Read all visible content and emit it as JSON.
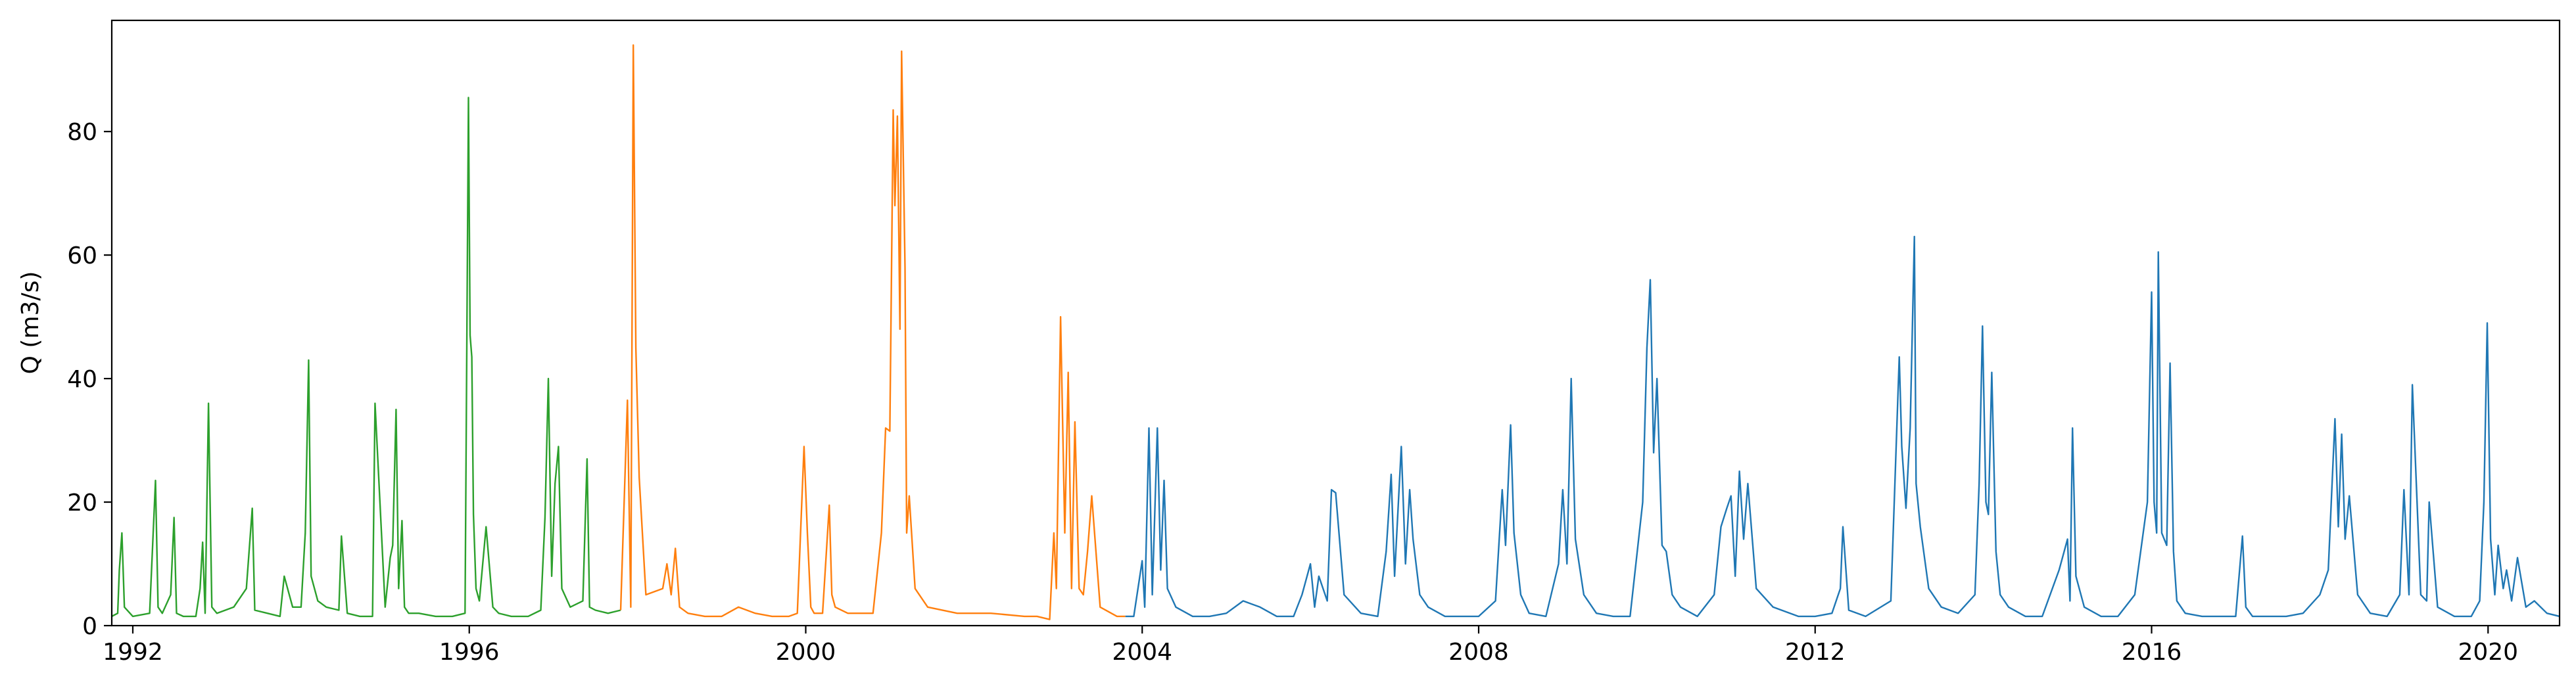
{
  "chart_data": {
    "type": "line",
    "ylabel": "Q (m3/s)",
    "xlabel": "",
    "title": "",
    "xlim": [
      1991.75,
      2020.85
    ],
    "ylim": [
      0,
      98
    ],
    "x_ticks": [
      1992,
      1996,
      2000,
      2004,
      2008,
      2012,
      2016,
      2020
    ],
    "x_tick_labels": [
      "1992",
      "1996",
      "2000",
      "2004",
      "2008",
      "2012",
      "2016",
      "2020"
    ],
    "y_ticks": [
      0,
      20,
      40,
      60,
      80
    ],
    "y_tick_labels": [
      "0",
      "20",
      "40",
      "60",
      "80"
    ],
    "grid": false,
    "series": [
      {
        "color": "#2ca02c",
        "x": [
          1991.75,
          1991.82,
          1991.84,
          1991.87,
          1991.9,
          1992.0,
          1992.2,
          1992.27,
          1992.3,
          1992.35,
          1992.45,
          1992.49,
          1992.52,
          1992.6,
          1992.75,
          1992.8,
          1992.83,
          1992.86,
          1992.9,
          1992.94,
          1993.0,
          1993.2,
          1993.35,
          1993.42,
          1993.45,
          1993.6,
          1993.75,
          1993.8,
          1993.9,
          1994.0,
          1994.05,
          1994.09,
          1994.12,
          1994.2,
          1994.3,
          1994.45,
          1994.48,
          1994.55,
          1994.7,
          1994.85,
          1994.88,
          1995.0,
          1995.06,
          1995.09,
          1995.13,
          1995.16,
          1995.2,
          1995.23,
          1995.28,
          1995.4,
          1995.6,
          1995.8,
          1995.95,
          1995.99,
          1996.01,
          1996.03,
          1996.05,
          1996.08,
          1996.12,
          1996.2,
          1996.28,
          1996.35,
          1996.5,
          1996.7,
          1996.85,
          1996.9,
          1996.94,
          1996.98,
          1997.02,
          1997.06,
          1997.1,
          1997.2,
          1997.35,
          1997.4,
          1997.43,
          1997.5,
          1997.65,
          1997.8
        ],
        "y": [
          1.5,
          2,
          9,
          15,
          3,
          1.5,
          2,
          23.5,
          3,
          2,
          5,
          17.5,
          2,
          1.5,
          1.5,
          6,
          13.5,
          2,
          36,
          3,
          2,
          3,
          6,
          19,
          2.5,
          2,
          1.5,
          8,
          3,
          3,
          15,
          43,
          8,
          4,
          3,
          2.5,
          14.5,
          2,
          1.5,
          1.5,
          36,
          3,
          11,
          13,
          35,
          6,
          17,
          3,
          2,
          2,
          1.5,
          1.5,
          2,
          85.5,
          47,
          43.5,
          18,
          6,
          4,
          16,
          3,
          2,
          1.5,
          1.5,
          2.5,
          17.5,
          40,
          8,
          23,
          29,
          6,
          3,
          4,
          27,
          3,
          2.5,
          2,
          2.5
        ]
      },
      {
        "color": "#ff7f0e",
        "x": [
          1997.8,
          1997.88,
          1997.92,
          1997.95,
          1997.98,
          1998.02,
          1998.1,
          1998.3,
          1998.35,
          1998.4,
          1998.45,
          1998.5,
          1998.6,
          1998.8,
          1999.0,
          1999.2,
          1999.4,
          1999.6,
          1999.8,
          1999.9,
          1999.98,
          2000.02,
          2000.06,
          2000.1,
          2000.2,
          2000.28,
          2000.31,
          2000.35,
          2000.5,
          2000.8,
          2000.9,
          2000.95,
          2001.0,
          2001.04,
          2001.06,
          2001.09,
          2001.12,
          2001.14,
          2001.18,
          2001.2,
          2001.23,
          2001.3,
          2001.45,
          2001.8,
          2002.2,
          2002.6,
          2002.75,
          2002.9,
          2002.95,
          2002.98,
          2003.03,
          2003.08,
          2003.12,
          2003.16,
          2003.2,
          2003.25,
          2003.3,
          2003.35,
          2003.4,
          2003.5,
          2003.7,
          2003.8
        ],
        "y": [
          2.5,
          36.5,
          3,
          94,
          45,
          24,
          5,
          6,
          10,
          5,
          12.5,
          3,
          2,
          1.5,
          1.5,
          3,
          2,
          1.5,
          1.5,
          2,
          29,
          15,
          3,
          2,
          2,
          19.5,
          5,
          3,
          2,
          2,
          15,
          32,
          31.5,
          83.5,
          68,
          82.5,
          48,
          93,
          58,
          15,
          21,
          6,
          3,
          2,
          2,
          1.5,
          1.5,
          1,
          15,
          6,
          50,
          15,
          41,
          6,
          33,
          6,
          5,
          12,
          21,
          3,
          1.5,
          1.5
        ]
      },
      {
        "color": "#1f77b4",
        "x": [
          2003.8,
          2003.9,
          2004.0,
          2004.03,
          2004.08,
          2004.12,
          2004.18,
          2004.22,
          2004.26,
          2004.3,
          2004.4,
          2004.6,
          2004.8,
          2005.0,
          2005.2,
          2005.4,
          2005.6,
          2005.8,
          2005.9,
          2006.0,
          2006.05,
          2006.1,
          2006.2,
          2006.25,
          2006.3,
          2006.4,
          2006.6,
          2006.8,
          2006.9,
          2006.96,
          2007.0,
          2007.08,
          2007.13,
          2007.18,
          2007.22,
          2007.3,
          2007.4,
          2007.6,
          2007.8,
          2008.0,
          2008.2,
          2008.28,
          2008.32,
          2008.38,
          2008.42,
          2008.5,
          2008.6,
          2008.8,
          2008.95,
          2009.0,
          2009.05,
          2009.1,
          2009.15,
          2009.25,
          2009.4,
          2009.6,
          2009.8,
          2009.95,
          2010.0,
          2010.04,
          2010.08,
          2010.12,
          2010.18,
          2010.23,
          2010.3,
          2010.4,
          2010.6,
          2010.8,
          2010.88,
          2010.95,
          2011.0,
          2011.05,
          2011.1,
          2011.15,
          2011.2,
          2011.3,
          2011.5,
          2011.8,
          2012.0,
          2012.2,
          2012.3,
          2012.33,
          2012.4,
          2012.6,
          2012.9,
          2013.0,
          2013.03,
          2013.08,
          2013.13,
          2013.18,
          2013.2,
          2013.25,
          2013.35,
          2013.5,
          2013.7,
          2013.9,
          2013.95,
          2013.99,
          2014.03,
          2014.06,
          2014.1,
          2014.15,
          2014.2,
          2014.3,
          2014.5,
          2014.7,
          2014.9,
          2015.0,
          2015.03,
          2015.06,
          2015.1,
          2015.2,
          2015.4,
          2015.6,
          2015.8,
          2015.95,
          2016.0,
          2016.03,
          2016.06,
          2016.08,
          2016.12,
          2016.18,
          2016.22,
          2016.26,
          2016.3,
          2016.4,
          2016.6,
          2016.8,
          2017.0,
          2017.08,
          2017.12,
          2017.2,
          2017.4,
          2017.6,
          2017.8,
          2018.0,
          2018.1,
          2018.18,
          2018.22,
          2018.26,
          2018.3,
          2018.35,
          2018.45,
          2018.6,
          2018.8,
          2018.95,
          2019.0,
          2019.06,
          2019.1,
          2019.2,
          2019.27,
          2019.3,
          2019.4,
          2019.6,
          2019.8,
          2019.9,
          2019.95,
          2019.99,
          2020.03,
          2020.08,
          2020.12,
          2020.18,
          2020.22,
          2020.28,
          2020.35,
          2020.45,
          2020.55,
          2020.7,
          2020.85
        ],
        "y": [
          1.5,
          1.5,
          10.5,
          3,
          32,
          5,
          32,
          9,
          23.5,
          6,
          3,
          1.5,
          1.5,
          2,
          4,
          3,
          1.5,
          1.5,
          5,
          10,
          3,
          8,
          4,
          22,
          21.5,
          5,
          2,
          1.5,
          12,
          24.5,
          8,
          29,
          10,
          22,
          14,
          5,
          3,
          1.5,
          1.5,
          1.5,
          4,
          22,
          13,
          32.5,
          15,
          5,
          2,
          1.5,
          10,
          22,
          10,
          40,
          14,
          5,
          2,
          1.5,
          1.5,
          20,
          45,
          56,
          28,
          40,
          13,
          12,
          5,
          3,
          1.5,
          5,
          16,
          19,
          21,
          8,
          25,
          14,
          23,
          6,
          3,
          1.5,
          1.5,
          2,
          6,
          16,
          2.5,
          1.5,
          4,
          43.5,
          29,
          19,
          32,
          63,
          23,
          16,
          6,
          3,
          2,
          5,
          23,
          48.5,
          20,
          18,
          41,
          12,
          5,
          3,
          1.5,
          1.5,
          9,
          14,
          4,
          32,
          8,
          3,
          1.5,
          1.5,
          5,
          20,
          54,
          20,
          15,
          60.5,
          15,
          13,
          42.5,
          12,
          4,
          2,
          1.5,
          1.5,
          1.5,
          14.5,
          3,
          1.5,
          1.5,
          1.5,
          2,
          5,
          9,
          33.5,
          16,
          31,
          14,
          21,
          5,
          2,
          1.5,
          5,
          22,
          5,
          39,
          5,
          4,
          20,
          3,
          1.5,
          1.5,
          4,
          20,
          49,
          14,
          5,
          13,
          6,
          9,
          4,
          11,
          3,
          4,
          2,
          1.5
        ]
      }
    ]
  }
}
